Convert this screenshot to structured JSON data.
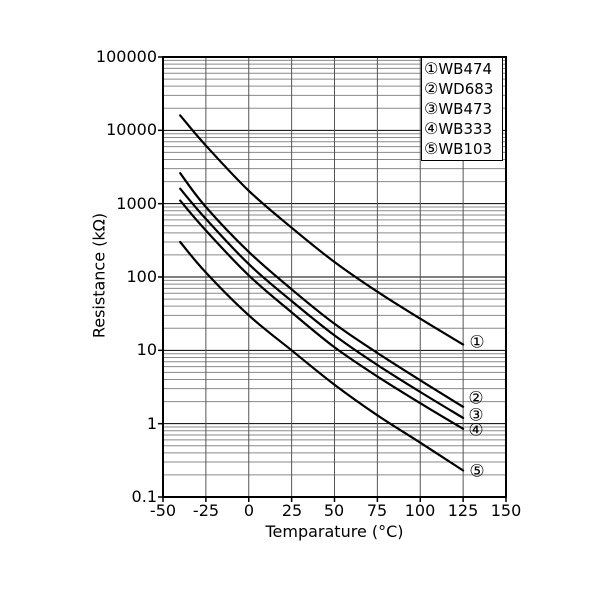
{
  "chart_data": {
    "type": "line",
    "title": "",
    "xlabel": "Temparature (°C)",
    "ylabel": "Resistance (kΩ)",
    "xlim": [
      -50,
      150
    ],
    "ylim": [
      0.1,
      100000
    ],
    "y_scale": "log",
    "grid": {
      "major": true,
      "minor_log": true
    },
    "legend_position": "top-right-inside",
    "x_ticks": [
      -50,
      -25,
      0,
      25,
      50,
      75,
      100,
      125,
      150
    ],
    "x_tick_labels": [
      "-50",
      "-25",
      "0",
      "25",
      "50",
      "75",
      "100",
      "125",
      "150"
    ],
    "y_ticks": [
      100000,
      10000,
      1000,
      100,
      10,
      1,
      0.1
    ],
    "y_tick_labels": [
      "100000",
      "10000",
      "1000",
      "100",
      "10",
      "1",
      "0.1"
    ],
    "x": [
      -40,
      -25,
      0,
      25,
      50,
      75,
      100,
      125
    ],
    "series": [
      {
        "marker": "①",
        "name": "WB474",
        "values": [
          16000,
          6200,
          1500,
          470,
          160,
          63,
          27,
          12
        ]
      },
      {
        "marker": "②",
        "name": "WD683",
        "values": [
          2600,
          900,
          220,
          68,
          23,
          9.2,
          3.9,
          1.7
        ]
      },
      {
        "marker": "③",
        "name": "WB473",
        "values": [
          1600,
          620,
          150,
          47,
          16,
          6.3,
          2.7,
          1.2
        ]
      },
      {
        "marker": "④",
        "name": "WB333",
        "values": [
          1100,
          430,
          105,
          33,
          11,
          4.4,
          1.9,
          0.85
        ]
      },
      {
        "marker": "⑤",
        "name": "WB103",
        "values": [
          300,
          115,
          30,
          10,
          3.4,
          1.3,
          0.55,
          0.23
        ]
      }
    ],
    "colors": {
      "background": "#ffffff",
      "curve": "#000000",
      "grid_major": "#000000",
      "grid_minor": "#8a8a8a",
      "grid_vertical": "#555555",
      "text": "#000000"
    }
  }
}
